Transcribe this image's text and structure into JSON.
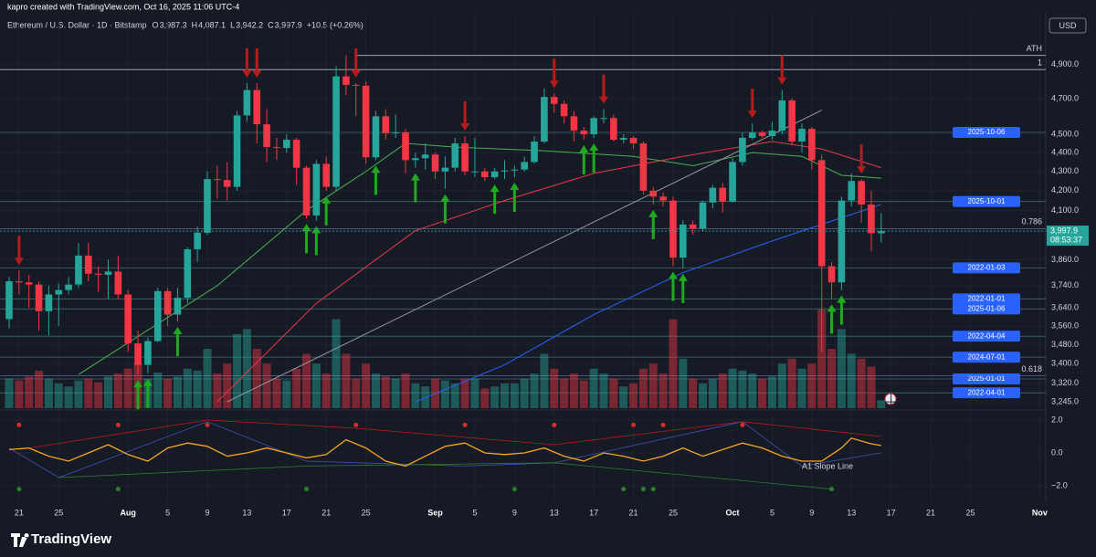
{
  "header": {
    "credit": "kapro created with TradingView.com, Oct 16, 2025 11:06 UTC-4",
    "symbol": "Ethereum / U.S. Dollar · 1D · Bitstamp",
    "legend": [
      {
        "key": "O",
        "value": "3,987.3"
      },
      {
        "key": "H",
        "value": "4,087.1"
      },
      {
        "key": "L",
        "value": "3,942.2"
      },
      {
        "key": "C",
        "value": "3,997.9"
      }
    ],
    "change": "+10.5 (+0.26%)",
    "currency": "USD",
    "brand": "TradingView"
  },
  "chart_data": {
    "type": "candlestick",
    "log_scale": true,
    "up_color": "#26a69a",
    "down_color": "#f23645",
    "categories": [
      null,
      "21",
      null,
      null,
      null,
      "25",
      null,
      null,
      null,
      null,
      null,
      null,
      "Aug",
      null,
      null,
      null,
      "5",
      null,
      null,
      null,
      "9",
      null,
      null,
      null,
      "13",
      null,
      null,
      null,
      "17",
      null,
      null,
      null,
      "21",
      null,
      null,
      null,
      "25",
      null,
      null,
      null,
      null,
      null,
      null,
      "Sep",
      null,
      null,
      null,
      "5",
      null,
      null,
      null,
      "9",
      null,
      null,
      null,
      "13",
      null,
      null,
      null,
      "17",
      null,
      null,
      null,
      "21",
      null,
      null,
      null,
      "25",
      null,
      null,
      null,
      null,
      null,
      "Oct",
      null,
      null,
      null,
      "5",
      null,
      null,
      null,
      "9",
      null,
      null,
      null,
      "13",
      null,
      null,
      null,
      "17",
      null,
      null,
      null,
      "21",
      null,
      null,
      null,
      "25",
      null,
      null,
      null,
      null,
      null,
      null,
      "Nov"
    ],
    "open": [
      3590,
      3760,
      3755,
      3745,
      3625,
      3700,
      3720,
      3745,
      3880,
      3795,
      3790,
      3805,
      3700,
      3485,
      3395,
      3495,
      3715,
      3610,
      3685,
      3910,
      3990,
      4260,
      4255,
      4220,
      4605,
      4750,
      4555,
      4430,
      4425,
      4470,
      4320,
      4075,
      4340,
      4220,
      4830,
      4780,
      4775,
      4375,
      4600,
      4505,
      4510,
      4360,
      4370,
      4390,
      4300,
      4320,
      4450,
      4300,
      4300,
      4270,
      4300,
      4305,
      4310,
      4350,
      4460,
      4710,
      4670,
      4600,
      4520,
      4500,
      4590,
      4590,
      4470,
      4480,
      4450,
      4200,
      4170,
      4150,
      3870,
      4030,
      4010,
      4140,
      4215,
      4145,
      4350,
      4480,
      4510,
      4490,
      4520,
      4690,
      4460,
      4530,
      4360,
      3830,
      3755,
      4150,
      4250,
      4130,
      3987.3,
      null,
      null,
      null,
      null,
      null,
      null,
      null,
      null,
      null,
      null,
      null,
      null,
      null,
      null,
      null,
      null
    ],
    "high": [
      3780,
      3810,
      3790,
      3760,
      3740,
      3750,
      3780,
      3940,
      3940,
      3830,
      3860,
      3880,
      3720,
      3540,
      3510,
      3730,
      3730,
      3730,
      3920,
      4020,
      4300,
      4330,
      4350,
      4630,
      4790,
      4790,
      4640,
      4480,
      4500,
      4480,
      4330,
      4360,
      4380,
      4890,
      4955,
      4790,
      4800,
      4630,
      4640,
      4610,
      4530,
      4400,
      4450,
      4400,
      4380,
      4480,
      4490,
      4480,
      4320,
      4320,
      4360,
      4330,
      4380,
      4490,
      4760,
      4730,
      4690,
      4630,
      4540,
      4600,
      4640,
      4610,
      4500,
      4490,
      4460,
      4220,
      4190,
      4170,
      4050,
      4050,
      4150,
      4230,
      4240,
      4370,
      4510,
      4560,
      4520,
      4570,
      4750,
      4700,
      4560,
      4540,
      4390,
      3850,
      4170,
      4290,
      4260,
      4200,
      4087.1,
      null,
      null,
      null,
      null,
      null,
      null,
      null,
      null,
      null,
      null,
      null,
      null,
      null,
      null,
      null,
      null
    ],
    "low": [
      3550,
      3700,
      3640,
      3540,
      3520,
      3560,
      3700,
      3730,
      3760,
      3710,
      3680,
      3680,
      3450,
      3355,
      3360,
      3490,
      3560,
      3580,
      3660,
      3850,
      3980,
      4160,
      4150,
      4200,
      4570,
      4450,
      4350,
      4360,
      4400,
      4230,
      4060,
      4050,
      4200,
      4200,
      4720,
      4600,
      4340,
      4360,
      4470,
      4480,
      4290,
      4320,
      4310,
      4260,
      4210,
      4300,
      4280,
      4270,
      4250,
      4260,
      4260,
      4270,
      4300,
      4340,
      4450,
      4620,
      4560,
      4460,
      4470,
      4480,
      4560,
      4460,
      4450,
      4420,
      4180,
      4130,
      4120,
      3830,
      3820,
      3980,
      4000,
      4110,
      4090,
      4140,
      4330,
      4470,
      4480,
      4470,
      4500,
      4440,
      4400,
      4310,
      3450,
      3680,
      3720,
      4120,
      4040,
      3900,
      3942.2,
      null,
      null,
      null,
      null,
      null,
      null,
      null,
      null,
      null,
      null,
      null,
      null,
      null,
      null,
      null,
      null
    ],
    "close": [
      3760,
      3755,
      3745,
      3625,
      3700,
      3720,
      3745,
      3880,
      3795,
      3790,
      3805,
      3700,
      3485,
      3395,
      3495,
      3715,
      3610,
      3685,
      3910,
      3990,
      4260,
      4255,
      4220,
      4605,
      4750,
      4555,
      4430,
      4425,
      4470,
      4320,
      4075,
      4340,
      4220,
      4830,
      4780,
      4775,
      4375,
      4600,
      4505,
      4510,
      4360,
      4370,
      4390,
      4300,
      4320,
      4450,
      4300,
      4300,
      4270,
      4300,
      4305,
      4310,
      4350,
      4460,
      4710,
      4670,
      4600,
      4520,
      4500,
      4590,
      4590,
      4470,
      4480,
      4450,
      4200,
      4170,
      4150,
      3870,
      4030,
      4010,
      4140,
      4215,
      4145,
      4350,
      4480,
      4510,
      4490,
      4520,
      4690,
      4460,
      4530,
      4360,
      3830,
      3755,
      4150,
      4250,
      4130,
      3987.3,
      3997.9,
      null,
      null,
      null,
      null,
      null,
      null,
      null,
      null,
      null,
      null,
      null,
      null,
      null,
      null,
      null,
      null
    ],
    "volume": [
      30,
      28,
      32,
      38,
      30,
      25,
      22,
      28,
      30,
      26,
      32,
      35,
      40,
      45,
      30,
      36,
      30,
      32,
      40,
      38,
      60,
      35,
      45,
      75,
      80,
      60,
      45,
      30,
      28,
      40,
      55,
      45,
      35,
      90,
      55,
      30,
      45,
      35,
      32,
      30,
      35,
      25,
      22,
      30,
      28,
      25,
      30,
      30,
      20,
      22,
      25,
      25,
      30,
      35,
      55,
      40,
      30,
      35,
      28,
      40,
      35,
      30,
      22,
      25,
      40,
      45,
      35,
      90,
      50,
      30,
      25,
      30,
      35,
      40,
      38,
      35,
      30,
      32,
      45,
      50,
      40,
      45,
      100,
      60,
      80,
      55,
      50,
      42,
      8,
      null,
      null,
      null,
      null,
      null,
      null,
      null,
      null,
      null,
      null,
      null,
      null,
      null,
      null,
      null,
      null
    ],
    "vlim": [
      0,
      400
    ],
    "ylim": [
      3220,
      5220
    ],
    "yticks": [
      {
        "value": 3245,
        "label": "3,245.0"
      },
      {
        "value": 3320,
        "label": "3,320.0"
      },
      {
        "value": 3400,
        "label": "3,400.0"
      },
      {
        "value": 3480,
        "label": "3,480.0"
      },
      {
        "value": 3560,
        "label": "3,560.0"
      },
      {
        "value": 3640,
        "label": "3,640.0"
      },
      {
        "value": 3740,
        "label": "3,740.0"
      },
      {
        "value": 3860,
        "label": "3,860.0"
      },
      {
        "value": 4100,
        "label": "4,100.0"
      },
      {
        "value": 4200,
        "label": "4,200.0"
      },
      {
        "value": 4300,
        "label": "4,300.0"
      },
      {
        "value": 4400,
        "label": "4,400.0"
      },
      {
        "value": 4500,
        "label": "4,500.0"
      },
      {
        "value": 4700,
        "label": "4,700.0"
      },
      {
        "value": 4900,
        "label": "4,900.0"
      }
    ],
    "grid": true,
    "last_price": {
      "value": 3997.9,
      "label": "3,997.9",
      "countdown": "08:53:37"
    },
    "levels": [
      {
        "label": "2025-10-06",
        "value": 4510
      },
      {
        "label": "2025-10-01",
        "value": 4145
      },
      {
        "label": "2022-01-03",
        "value": 3822
      },
      {
        "label": "2022-01-01",
        "value": 3680
      },
      {
        "label": "2025-01-06",
        "value": 3635
      },
      {
        "label": "2022-04-04",
        "value": 3516
      },
      {
        "label": "2024-07-01",
        "value": 3427
      },
      {
        "label": "2025-01-01",
        "value": 3337
      },
      {
        "label": "2022-04-01",
        "value": 3281
      }
    ],
    "fib_levels": [
      {
        "label": "ATH",
        "value": 4955
      },
      {
        "label": "1",
        "value": 4870
      },
      {
        "label": "0.786",
        "value": 4010
      },
      {
        "label": "0.618",
        "value": 3350
      }
    ],
    "ma_lines": [
      {
        "color": "#4caf50",
        "points": [
          [
            7,
            3355
          ],
          [
            21,
            3740
          ],
          [
            30,
            4100
          ],
          [
            36,
            4300
          ],
          [
            40,
            4450
          ],
          [
            45,
            4430
          ],
          [
            54,
            4410
          ],
          [
            63,
            4380
          ],
          [
            69,
            4330
          ],
          [
            75,
            4400
          ],
          [
            80,
            4380
          ],
          [
            84,
            4280
          ],
          [
            88,
            4265
          ]
        ]
      },
      {
        "color": "#e53950",
        "points": [
          [
            21,
            3245
          ],
          [
            31,
            3660
          ],
          [
            41,
            4000
          ],
          [
            50,
            4150
          ],
          [
            59,
            4290
          ],
          [
            68,
            4380
          ],
          [
            77,
            4460
          ],
          [
            82,
            4420
          ],
          [
            88,
            4320
          ]
        ]
      },
      {
        "color": "#2962ff",
        "points": [
          [
            41,
            3245
          ],
          [
            50,
            3395
          ],
          [
            59,
            3610
          ],
          [
            68,
            3800
          ],
          [
            77,
            3950
          ],
          [
            88,
            4130
          ]
        ]
      },
      {
        "color": "#9598a1",
        "points": [
          [
            22,
            3245
          ],
          [
            82,
            4634
          ]
        ]
      }
    ],
    "sell_signals": [
      1,
      24,
      25,
      35,
      46,
      55,
      60,
      75,
      78,
      86
    ],
    "buy_signals": [
      13,
      14,
      17,
      30,
      31,
      32,
      37,
      41,
      44,
      49,
      51,
      58,
      59,
      65,
      67,
      68,
      83,
      84
    ],
    "oscillator": {
      "label": "A1 Slope Line",
      "olim": [
        -3,
        2.4
      ],
      "oticks": [
        {
          "value": 2,
          "label": "2.0"
        },
        {
          "value": 0,
          "label": "0.0"
        },
        {
          "value": -2,
          "label": "−2.0"
        }
      ],
      "lines": [
        {
          "color": "#f5a623",
          "points": [
            [
              0,
              0.2
            ],
            [
              2,
              0.3
            ],
            [
              4,
              -0.2
            ],
            [
              6,
              -0.5
            ],
            [
              8,
              0
            ],
            [
              10,
              0.5
            ],
            [
              12,
              -0.1
            ],
            [
              14,
              -0.5
            ],
            [
              16,
              0.3
            ],
            [
              18,
              0.6
            ],
            [
              20,
              0.4
            ],
            [
              22,
              -0.2
            ],
            [
              24,
              0
            ],
            [
              26,
              0.3
            ],
            [
              28,
              0
            ],
            [
              30,
              -0.3
            ],
            [
              32,
              -0.1
            ],
            [
              34,
              0.8
            ],
            [
              36,
              0.3
            ],
            [
              38,
              -0.5
            ],
            [
              40,
              -0.8
            ],
            [
              42,
              -0.2
            ],
            [
              44,
              0.4
            ],
            [
              46,
              0.6
            ],
            [
              48,
              0
            ],
            [
              50,
              -0.1
            ],
            [
              52,
              0
            ],
            [
              54,
              0.3
            ],
            [
              56,
              -0.2
            ],
            [
              58,
              -0.5
            ],
            [
              60,
              0
            ],
            [
              62,
              -0.2
            ],
            [
              64,
              -0.5
            ],
            [
              66,
              -0.2
            ],
            [
              68,
              0.3
            ],
            [
              70,
              -0.2
            ],
            [
              72,
              0.2
            ],
            [
              74,
              0.6
            ],
            [
              76,
              0.3
            ],
            [
              78,
              -0.2
            ],
            [
              80,
              -0.5
            ],
            [
              82,
              -0.5
            ],
            [
              84,
              0.3
            ],
            [
              85,
              0.9
            ],
            [
              87,
              0.55
            ],
            [
              88,
              0.45
            ]
          ]
        },
        {
          "color": "#3f51b5",
          "points": [
            [
              0,
              0.3
            ],
            [
              5,
              -1.5
            ],
            [
              20,
              1.9
            ],
            [
              30,
              -0.5
            ],
            [
              46,
              -0.8
            ],
            [
              55,
              -0.6
            ],
            [
              74,
              1.9
            ],
            [
              80,
              -0.8
            ],
            [
              88,
              0
            ]
          ]
        },
        {
          "color": "#b71c1c",
          "points": [
            [
              1,
              0.2
            ],
            [
              20,
              2
            ],
            [
              35,
              1.5
            ],
            [
              55,
              0.5
            ],
            [
              74,
              1.9
            ],
            [
              88,
              1
            ]
          ]
        },
        {
          "color": "#2e7d32",
          "points": [
            [
              5,
              -1.5
            ],
            [
              30,
              -0.8
            ],
            [
              55,
              -0.6
            ],
            [
              83,
              -2.2
            ]
          ]
        }
      ],
      "red_dots": [
        [
          1,
          1.7
        ],
        [
          11,
          1.7
        ],
        [
          20,
          1.7
        ],
        [
          35,
          1.7
        ],
        [
          46,
          1.7
        ],
        [
          55,
          1.7
        ],
        [
          63,
          1.7
        ],
        [
          66,
          1.7
        ],
        [
          74,
          1.7
        ]
      ],
      "green_dots": [
        [
          1,
          -2.2
        ],
        [
          11,
          -2.2
        ],
        [
          30,
          -2.2
        ],
        [
          51,
          -2.2
        ],
        [
          62,
          -2.2
        ],
        [
          64,
          -2.2
        ],
        [
          65,
          -2.2
        ],
        [
          83,
          -2.2
        ]
      ]
    }
  }
}
